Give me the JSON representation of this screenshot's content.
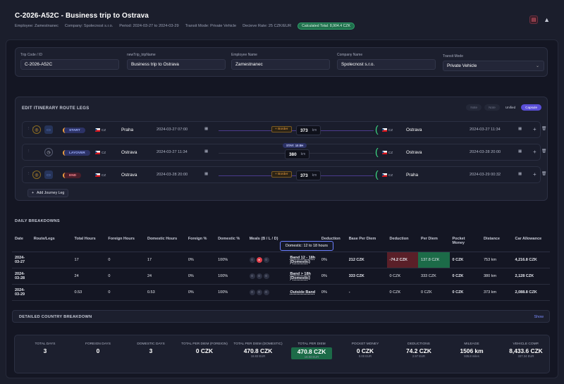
{
  "header": {
    "title": "C-2026-A52C - Business trip to Ostrava",
    "employee": "Employee: Zamestnanec",
    "company": "Company: Spolecnost s.r.o.",
    "period": "Period: 2024-03-27 to 2024-03-29",
    "transit": "Transit Mode: Private Vehicle",
    "rate": "Decieve Rate: 25 CZK/EUR",
    "total": "Calculated Total: 8,904.4 CZK"
  },
  "form": {
    "trip_code_label": "Trip Code / ID",
    "trip_code": "C-2026-A52C",
    "trip_name_label": "newTrip_tripName",
    "trip_name": "Business trip to Ostrava",
    "employee_label": "Employee Name",
    "employee": "Zamestnanec",
    "company_label": "Company Name",
    "company": "Spolecnost s.r.o.",
    "transit_label": "Transit Mode",
    "transit": "Private Vehicle"
  },
  "itinerary": {
    "title": "EDIT ITINERARY ROUTE LEGS",
    "b1": "Note",
    "b2": "Note",
    "unified": "Unified",
    "capsule": "Capsule",
    "add": "Add Journey Leg",
    "legs": [
      {
        "tag": "START",
        "cc": "CZ",
        "from": "Praha",
        "dt": "2024-03-27 07:00",
        "border": "+ Border",
        "km": "373",
        "unit": "km",
        "to": "Ostrava",
        "cc2": "CZ",
        "dt2": "2024-03-27 11:34"
      },
      {
        "tag": "LAYOVER",
        "cc": "CZ",
        "from": "Ostrava",
        "dt": "2024-03-27 11:34",
        "stay": "STAY: 10:8H",
        "km": "380",
        "unit": "km",
        "to": "Ostrava",
        "cc2": "CZ",
        "dt2": "2024-03-28 20:00"
      },
      {
        "tag": "END",
        "cc": "CZ",
        "from": "Ostrava",
        "dt": "2024-03-28 20:00",
        "border": "+ Border",
        "km": "373",
        "unit": "km",
        "to": "Praha",
        "cc2": "CZ",
        "dt2": "2024-03-29 00:32"
      }
    ]
  },
  "daily": {
    "title": "DAILY BREAKDOWNS",
    "tooltip": "Domestic: 12 to 18 hours",
    "headers": [
      "Date",
      "Route/Legs",
      "Total Hours",
      "Foreign Hours",
      "Domestic Hours",
      "Foreign %",
      "Domestic %",
      "Meals (B / L / D)",
      "",
      "Deduction",
      "Base Per Diem",
      "Deduction",
      "Per Diem",
      "Pocket Money",
      "Distance",
      "Car Allowance"
    ],
    "rows": [
      {
        "date": "2024-03-27",
        "total": "17",
        "foreign": "0",
        "domestic": "17",
        "fpct": "0%",
        "dpct": "100%",
        "band": "Band 12 - 18h (Domestic)",
        "ded": "0%",
        "base": "212 CZK",
        "deduction": "-74.2 CZK",
        "perdiem": "137.8 CZK",
        "pocket": "0 CZK",
        "dist": "753 km",
        "car": "4,216.8 CZK"
      },
      {
        "date": "2024-03-28",
        "total": "24",
        "foreign": "0",
        "domestic": "24",
        "fpct": "0%",
        "dpct": "100%",
        "band": "Band > 18h (Domestic)",
        "ded": "0%",
        "base": "333 CZK",
        "deduction": "0 CZK",
        "perdiem": "333 CZK",
        "pocket": "0 CZK",
        "dist": "380 km",
        "car": "2,128 CZK"
      },
      {
        "date": "2024-03-29",
        "total": "0.53",
        "foreign": "0",
        "domestic": "0.53",
        "fpct": "0%",
        "dpct": "100%",
        "band": "Outside Band",
        "ded": "0%",
        "base": "-",
        "deduction": "0 CZK",
        "perdiem": "0 CZK",
        "pocket": "0 CZK",
        "dist": "373 km",
        "car": "2,088.8 CZK"
      }
    ]
  },
  "country": {
    "title": "DETAILED COUNTRY BREAKDOWN",
    "show": "Show"
  },
  "summary": [
    {
      "label": "TOTAL DAYS",
      "value": "3",
      "sub": ""
    },
    {
      "label": "FOREIGN DAYS",
      "value": "0",
      "sub": ""
    },
    {
      "label": "DOMESTIC DAYS",
      "value": "3",
      "sub": ""
    },
    {
      "label": "TOTAL PER DIEM (FOREIGN)",
      "value": "0 CZK",
      "sub": ""
    },
    {
      "label": "TOTAL PER DIEM (DOMESTIC)",
      "value": "470.8 CZK",
      "sub": "18.83 EUR"
    },
    {
      "label": "TOTAL PER DIEM",
      "value": "470.8 CZK",
      "sub": "18.83 EUR"
    },
    {
      "label": "POCKET MONEY",
      "value": "0 CZK",
      "sub": "0.00 EUR"
    },
    {
      "label": "DEDUCTIONS",
      "value": "74.2 CZK",
      "sub": "2.97 EUR"
    },
    {
      "label": "MILEAGE",
      "value": "1506 km",
      "sub": "935.8 miles"
    },
    {
      "label": "VEHICLE COMP.",
      "value": "8,433.6 CZK",
      "sub": "337.34 EUR"
    }
  ]
}
